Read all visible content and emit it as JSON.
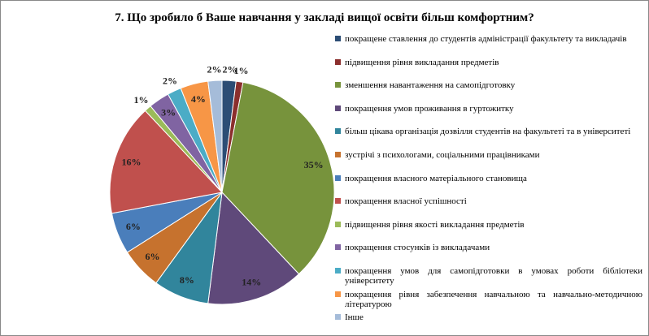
{
  "chart_data": {
    "type": "pie",
    "title": "7. Що зробило б Ваше навчання у закладі вищої освіти більш комфортним?",
    "categories": [
      "покращене ставлення до студентів адміністрації факультету та викладачів",
      "підвищення рівня викладання предметів",
      "зменшення навантаження на самопідготовку",
      "покращення умов проживання в гуртожитку",
      "більш цікава організація дозвілля студентів на факультеті та в університеті",
      "зустрічі з психологами, соціальними працівниками",
      "покращення власного матеріального становища",
      "покращення власної успішності",
      "підвищення рівня якості викладання предметів",
      "покращення стосунків із викладачами",
      "покращення умов для самопідготовки в умовах роботи бібліотеки університету",
      "покращення рівня забезпечення навчальною та навчально-методичною літературою",
      "Інше"
    ],
    "values": [
      2,
      1,
      35,
      14,
      8,
      6,
      6,
      16,
      1,
      3,
      2,
      4,
      2
    ],
    "value_labels": [
      "2%",
      "1%",
      "35%",
      "14%",
      "8%",
      "6%",
      "6%",
      "16%",
      "1%",
      "3%",
      "2%",
      "4%",
      "2%"
    ],
    "colors": [
      "#2C4D75",
      "#8B2F2D",
      "#77933C",
      "#5F497A",
      "#31859C",
      "#C6722E",
      "#4A7EBB",
      "#C0504D",
      "#9BBB59",
      "#8064A2",
      "#4BACC6",
      "#F79646",
      "#A5BCD9"
    ],
    "legend": "right"
  }
}
